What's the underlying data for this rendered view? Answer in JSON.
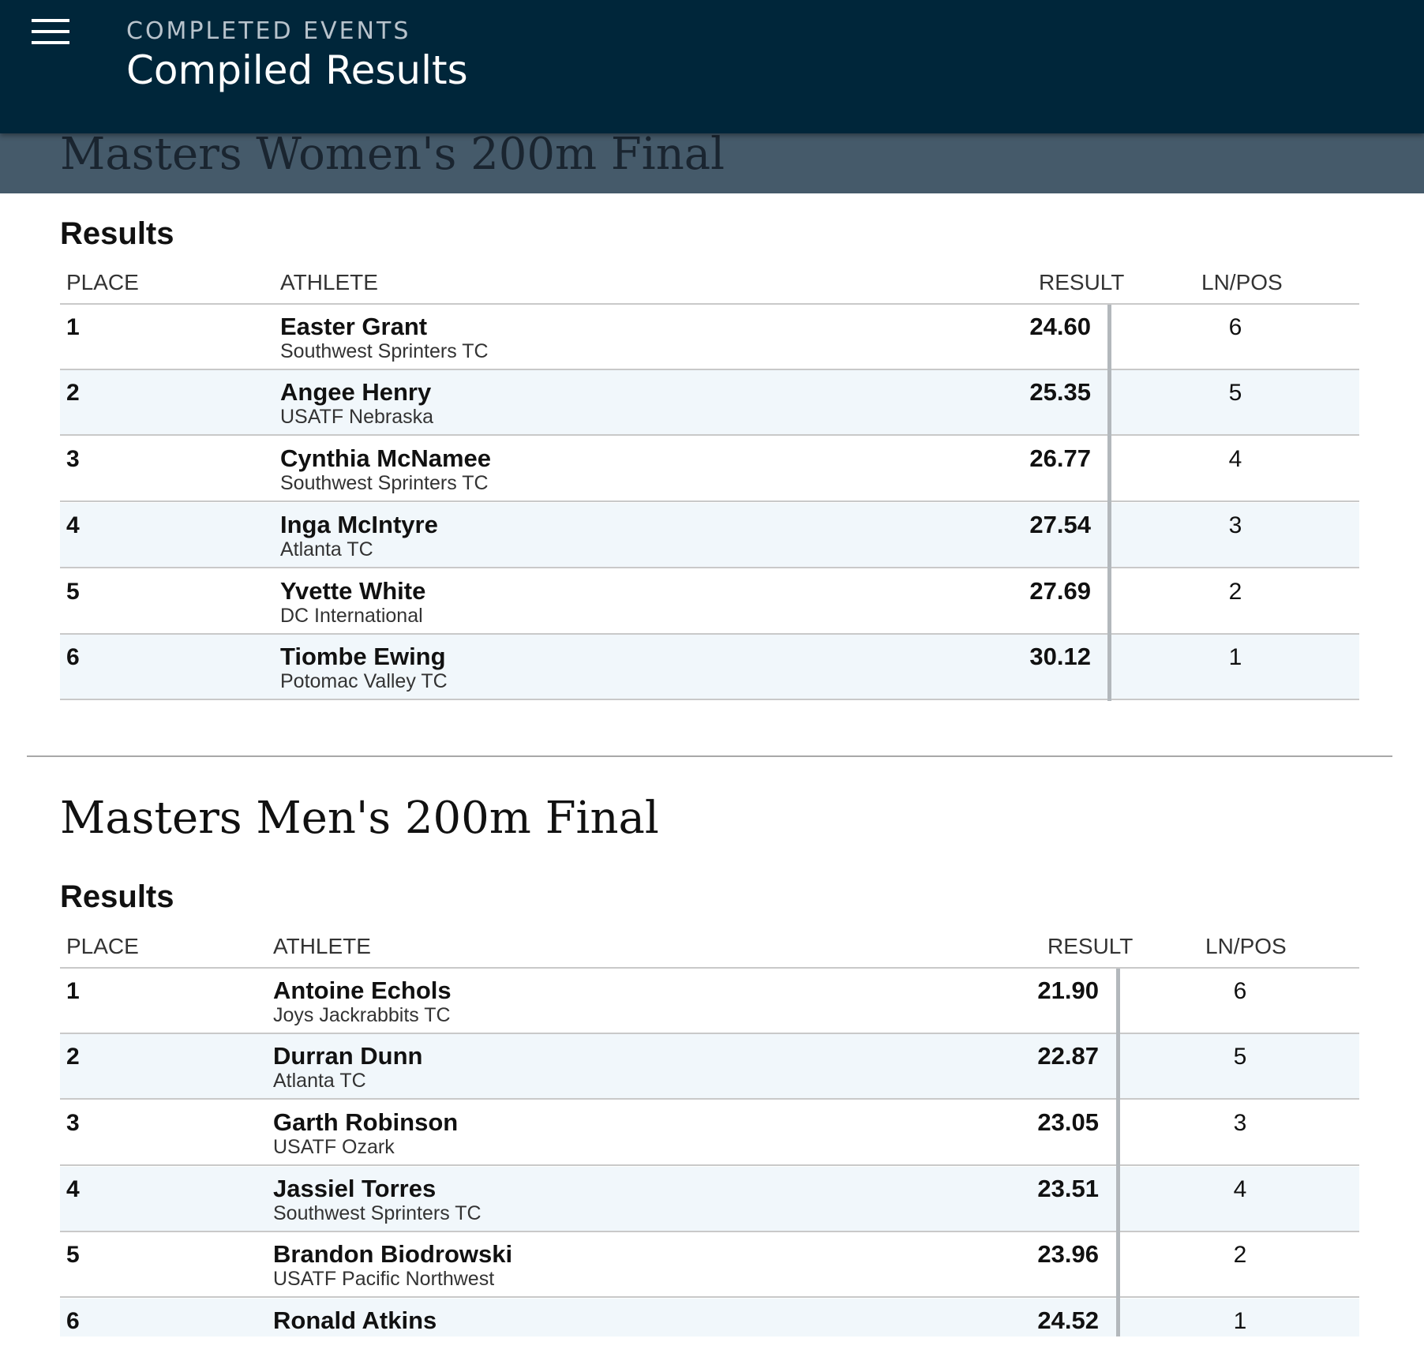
{
  "header": {
    "subtitle": "COMPLETED EVENTS",
    "title": "Compiled Results"
  },
  "sticky_event_title": "Masters Women's 200m Final",
  "events": [
    {
      "title": "Masters Women's 200m Final",
      "results_label": "Results",
      "columns": {
        "place": "PLACE",
        "athlete": "ATHLETE",
        "result": "RESULT",
        "lnpos": "LN/POS"
      },
      "rows": [
        {
          "place": "1",
          "name": "Easter Grant",
          "team": "Southwest Sprinters TC",
          "result": "24.60",
          "lnpos": "6"
        },
        {
          "place": "2",
          "name": "Angee Henry",
          "team": "USATF Nebraska",
          "result": "25.35",
          "lnpos": "5"
        },
        {
          "place": "3",
          "name": "Cynthia McNamee",
          "team": "Southwest Sprinters TC",
          "result": "26.77",
          "lnpos": "4"
        },
        {
          "place": "4",
          "name": "Inga McIntyre",
          "team": "Atlanta TC",
          "result": "27.54",
          "lnpos": "3"
        },
        {
          "place": "5",
          "name": "Yvette White",
          "team": "DC International",
          "result": "27.69",
          "lnpos": "2"
        },
        {
          "place": "6",
          "name": "Tiombe Ewing",
          "team": "Potomac Valley TC",
          "result": "30.12",
          "lnpos": "1"
        }
      ]
    },
    {
      "title": "Masters Men's 200m Final",
      "results_label": "Results",
      "columns": {
        "place": "PLACE",
        "athlete": "ATHLETE",
        "result": "RESULT",
        "lnpos": "LN/POS"
      },
      "rows": [
        {
          "place": "1",
          "name": "Antoine Echols",
          "team": "Joys Jackrabbits TC",
          "result": "21.90",
          "lnpos": "6"
        },
        {
          "place": "2",
          "name": "Durran Dunn",
          "team": "Atlanta TC",
          "result": "22.87",
          "lnpos": "5"
        },
        {
          "place": "3",
          "name": "Garth Robinson",
          "team": "USATF Ozark",
          "result": "23.05",
          "lnpos": "3"
        },
        {
          "place": "4",
          "name": "Jassiel Torres",
          "team": "Southwest Sprinters TC",
          "result": "23.51",
          "lnpos": "4"
        },
        {
          "place": "5",
          "name": "Brandon Biodrowski",
          "team": "USATF Pacific Northwest",
          "result": "23.96",
          "lnpos": "2"
        },
        {
          "place": "6",
          "name": "Ronald Atkins",
          "team": "",
          "result": "24.52",
          "lnpos": "1"
        }
      ]
    }
  ]
}
